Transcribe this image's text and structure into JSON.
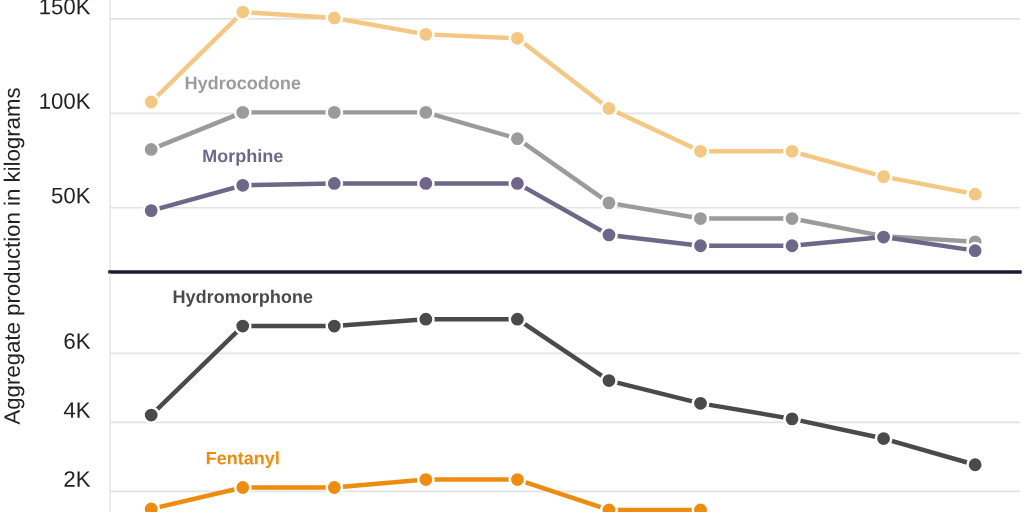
{
  "chart_data": [
    {
      "type": "line",
      "ylabel": "Aggregate production in kilograms",
      "categories": [
        null,
        null,
        null,
        null,
        null,
        null,
        null,
        null,
        null,
        null
      ],
      "ylim": [
        16,
        160
      ],
      "yticks": [
        {
          "value": 50,
          "label": "50K"
        },
        {
          "value": 100,
          "label": "100K"
        },
        {
          "value": 150,
          "label": "150K"
        }
      ],
      "grid": "y",
      "marker": "circle",
      "line_style": "solid",
      "tick_labels": "y",
      "series": [
        {
          "color": "#f4c783",
          "values": [
            106,
            153.6,
            150.5,
            141.8,
            139.7,
            102.6,
            79.9,
            79.9,
            66.5,
            57.2
          ]
        },
        {
          "name": "Hydrocodone",
          "color": "#9b9b9b",
          "values": [
            80.9,
            100.5,
            100.5,
            100.5,
            86.6,
            52.6,
            44.3,
            44.3,
            35.0,
            32.0
          ]
        },
        {
          "name": "Morphine",
          "color": "#6e6789",
          "values": [
            48.5,
            61.9,
            62.9,
            62.9,
            62.9,
            35.6,
            29.9,
            29.9,
            34.5,
            27.3
          ]
        }
      ]
    },
    {
      "type": "line",
      "categories": [
        null,
        null,
        null,
        null,
        null,
        null,
        null,
        null,
        null,
        null
      ],
      "ylim": [
        1.4,
        8.3
      ],
      "yticks": [
        {
          "value": 2,
          "label": "2K"
        },
        {
          "value": 4,
          "label": "4K"
        },
        {
          "value": 6,
          "label": "6K"
        }
      ],
      "grid": "y",
      "marker": "circle",
      "line_style": "solid",
      "tick_labels": "y",
      "series": [
        {
          "name": "Hydromorphone",
          "color": "#4a4a4a",
          "values": [
            4.21,
            6.79,
            6.79,
            6.99,
            6.99,
            5.21,
            4.55,
            4.1,
            3.53,
            2.77
          ]
        },
        {
          "name": "Fentanyl",
          "color": "#ee8c0f",
          "values": [
            1.49,
            2.11,
            2.11,
            2.34,
            2.34,
            1.46,
            1.46,
            null,
            null,
            null
          ]
        }
      ]
    }
  ]
}
